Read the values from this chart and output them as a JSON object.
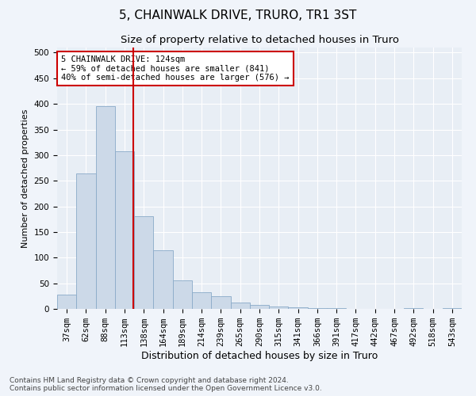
{
  "title": "5, CHAINWALK DRIVE, TRURO, TR1 3ST",
  "subtitle": "Size of property relative to detached houses in Truro",
  "xlabel": "Distribution of detached houses by size in Truro",
  "ylabel": "Number of detached properties",
  "bin_labels": [
    "37sqm",
    "62sqm",
    "88sqm",
    "113sqm",
    "138sqm",
    "164sqm",
    "189sqm",
    "214sqm",
    "239sqm",
    "265sqm",
    "290sqm",
    "315sqm",
    "341sqm",
    "366sqm",
    "391sqm",
    "417sqm",
    "442sqm",
    "467sqm",
    "492sqm",
    "518sqm",
    "543sqm"
  ],
  "bar_values": [
    28,
    265,
    395,
    308,
    181,
    114,
    55,
    32,
    25,
    13,
    8,
    5,
    3,
    2,
    1,
    0,
    0,
    0,
    1,
    0,
    2
  ],
  "bar_color": "#ccd9e8",
  "bar_edge_color": "#8aaac8",
  "vline_color": "#cc0000",
  "annotation_text": "5 CHAINWALK DRIVE: 124sqm\n← 59% of detached houses are smaller (841)\n40% of semi-detached houses are larger (576) →",
  "annotation_box_color": "#ffffff",
  "annotation_box_edge": "#cc0000",
  "ylim": [
    0,
    510
  ],
  "yticks": [
    0,
    50,
    100,
    150,
    200,
    250,
    300,
    350,
    400,
    450,
    500
  ],
  "fig_bg_color": "#f0f4fa",
  "plot_bg_color": "#e8eef5",
  "footer_text": "Contains HM Land Registry data © Crown copyright and database right 2024.\nContains public sector information licensed under the Open Government Licence v3.0.",
  "title_fontsize": 11,
  "subtitle_fontsize": 9.5,
  "xlabel_fontsize": 9,
  "ylabel_fontsize": 8,
  "tick_fontsize": 7.5,
  "annotation_fontsize": 7.5,
  "footer_fontsize": 6.5
}
